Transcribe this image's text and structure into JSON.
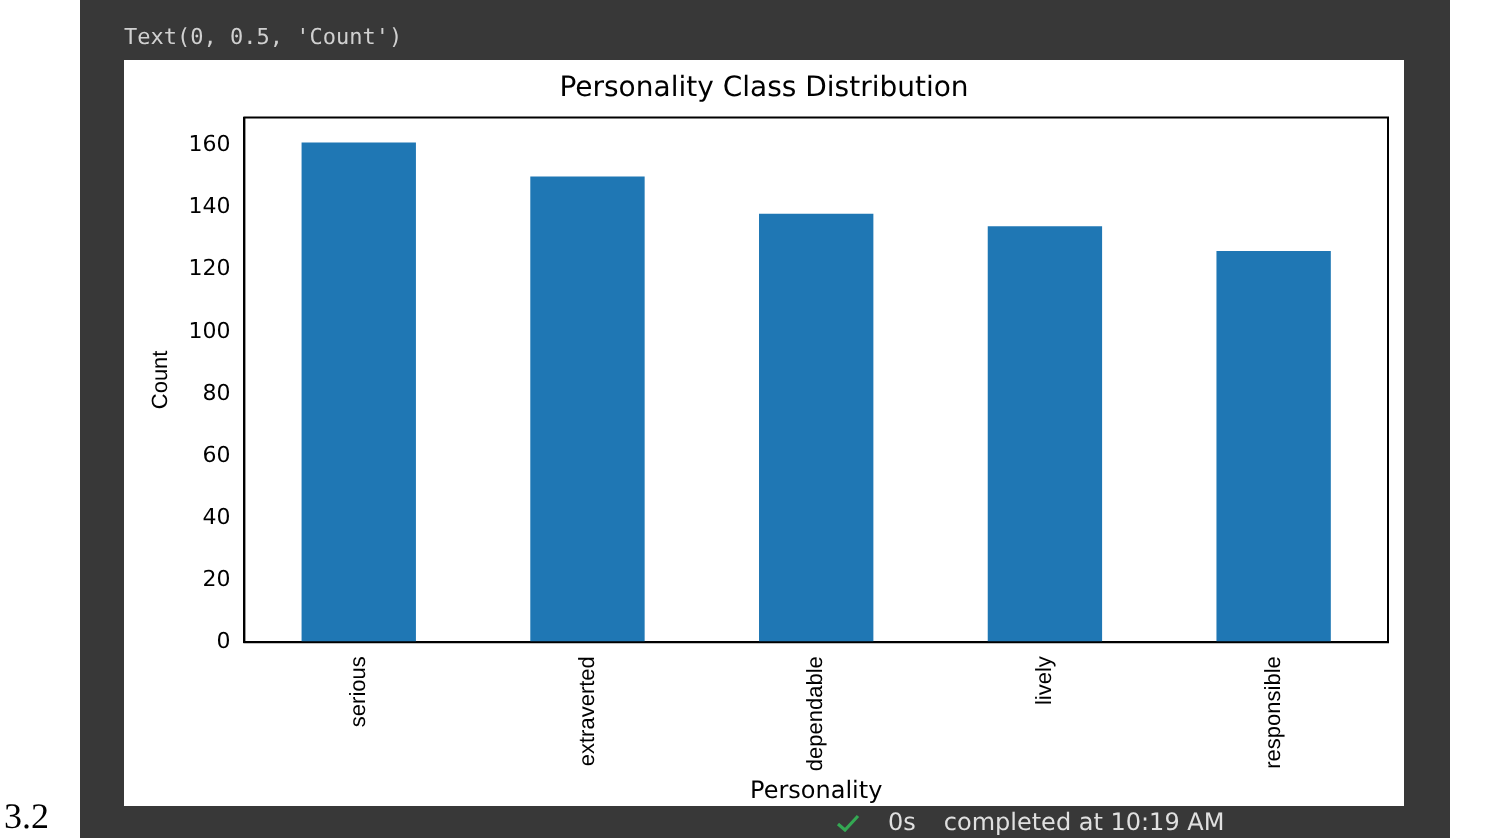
{
  "chart_data": {
    "type": "bar",
    "title": "Personality Class Distribution",
    "xlabel": "Personality",
    "ylabel": "Count",
    "categories": [
      "serious",
      "extraverted",
      "dependable",
      "lively",
      "responsible"
    ],
    "values": [
      161,
      150,
      138,
      134,
      126
    ],
    "color": "#1f77b4",
    "ylim": [
      0,
      169
    ],
    "yticks": [
      0,
      20,
      40,
      60,
      80,
      100,
      120,
      140,
      160
    ],
    "grid": false,
    "legend": false,
    "annotations": [
      "Text(0, 0.5, 'Count')",
      "3.2",
      "0s",
      "completed at 10:19 AM"
    ]
  }
}
